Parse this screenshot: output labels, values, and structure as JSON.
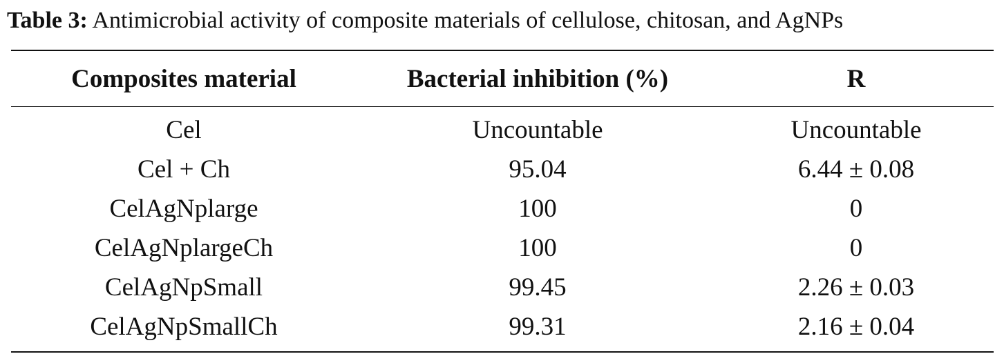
{
  "caption": {
    "label": "Table 3:",
    "text": "Antimicrobial activity of composite materials of cellulose, chitosan, and AgNPs"
  },
  "table": {
    "headers": [
      "Composites material",
      "Bacterial inhibition (%)",
      "R"
    ],
    "rows": [
      [
        "Cel",
        "Uncountable",
        "Uncountable"
      ],
      [
        "Cel + Ch",
        "95.04",
        "6.44 ± 0.08"
      ],
      [
        "CelAgNplarge",
        "100",
        "0"
      ],
      [
        "CelAgNplargeCh",
        "100",
        "0"
      ],
      [
        "CelAgNpSmall",
        "99.45",
        "2.26 ± 0.03"
      ],
      [
        "CelAgNpSmallCh",
        "99.31",
        "2.16 ± 0.04"
      ]
    ]
  }
}
